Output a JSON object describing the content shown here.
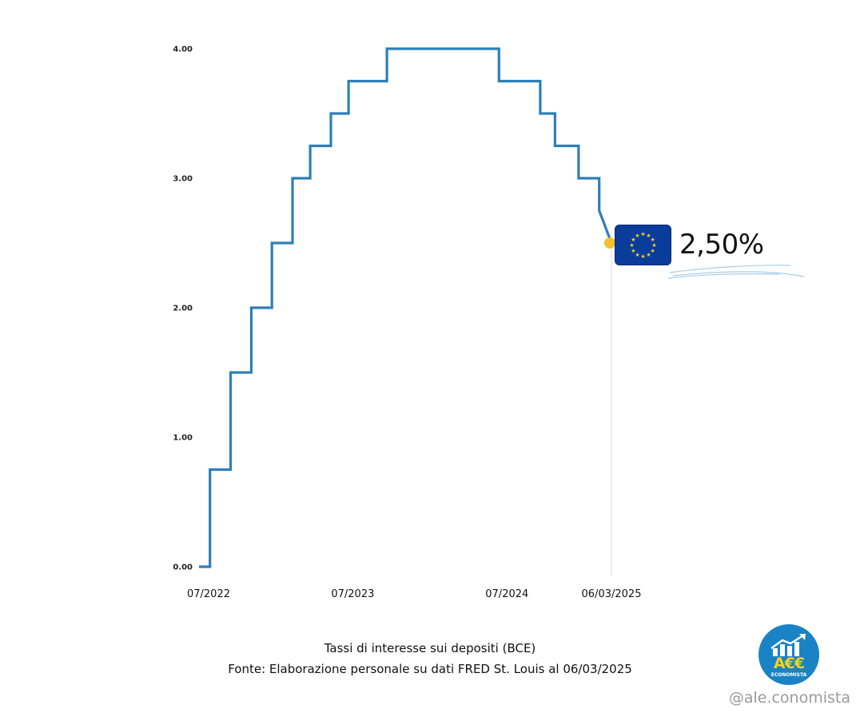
{
  "chart_data": {
    "type": "line",
    "title": "Tassi di interesse sui depositi (BCE)",
    "subtitle": "Fonte: Elaborazione personale su dati FRED St. Louis al 06/03/2025",
    "xlabel": "",
    "ylabel": "",
    "ylim": [
      0,
      4
    ],
    "y_ticks": [
      "0.00",
      "1.00",
      "2.00",
      "3.00",
      "4.00"
    ],
    "x_ticks": [
      {
        "label": "07/2022",
        "date": "2022-07-01"
      },
      {
        "label": "07/2023",
        "date": "2023-07-01"
      },
      {
        "label": "07/2024",
        "date": "2024-07-01"
      },
      {
        "label": "06/03/2025",
        "date": "2025-03-06"
      }
    ],
    "xlim": [
      "2022-07-01",
      "2025-03-06"
    ],
    "grid": false,
    "style": "step",
    "series": [
      {
        "color": "#2e7fb8",
        "points": [
          {
            "date": "2022-07-01",
            "value": 0.0
          },
          {
            "date": "2022-07-27",
            "value": 0.0
          },
          {
            "date": "2022-07-27",
            "value": 0.75
          },
          {
            "date": "2022-09-14",
            "value": 0.75
          },
          {
            "date": "2022-09-14",
            "value": 1.5
          },
          {
            "date": "2022-11-02",
            "value": 1.5
          },
          {
            "date": "2022-11-02",
            "value": 2.0
          },
          {
            "date": "2022-12-21",
            "value": 2.0
          },
          {
            "date": "2022-12-21",
            "value": 2.5
          },
          {
            "date": "2023-02-08",
            "value": 2.5
          },
          {
            "date": "2023-02-08",
            "value": 3.0
          },
          {
            "date": "2023-03-22",
            "value": 3.0
          },
          {
            "date": "2023-03-22",
            "value": 3.25
          },
          {
            "date": "2023-05-10",
            "value": 3.25
          },
          {
            "date": "2023-05-10",
            "value": 3.5
          },
          {
            "date": "2023-06-21",
            "value": 3.5
          },
          {
            "date": "2023-06-21",
            "value": 3.75
          },
          {
            "date": "2023-09-20",
            "value": 3.75
          },
          {
            "date": "2023-09-20",
            "value": 4.0
          },
          {
            "date": "2024-06-12",
            "value": 4.0
          },
          {
            "date": "2024-06-12",
            "value": 3.75
          },
          {
            "date": "2024-09-18",
            "value": 3.75
          },
          {
            "date": "2024-09-18",
            "value": 3.5
          },
          {
            "date": "2024-10-23",
            "value": 3.5
          },
          {
            "date": "2024-10-23",
            "value": 3.25
          },
          {
            "date": "2024-12-18",
            "value": 3.25
          },
          {
            "date": "2024-12-18",
            "value": 3.0
          },
          {
            "date": "2025-02-05",
            "value": 3.0
          },
          {
            "date": "2025-02-05",
            "value": 2.75
          },
          {
            "date": "2025-03-06",
            "value": 2.5
          }
        ]
      }
    ],
    "annotation": {
      "label": "2,50%",
      "date": "2025-03-06",
      "value": 2.5,
      "marker_color": "#f2c12e",
      "flag": "eu-flag"
    }
  },
  "branding": {
    "handle": "@ale.conomista",
    "logo_text": "A€€",
    "logo_subtext": "ECONOMISTA",
    "logo_color": "#1a83c5",
    "logo_accent": "#f5d21b"
  }
}
